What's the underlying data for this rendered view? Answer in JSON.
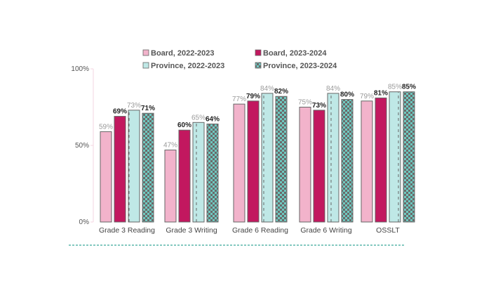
{
  "chart_data": {
    "type": "bar",
    "categories": [
      "Grade 3 Reading",
      "Grade 3 Writing",
      "Grade 6 Reading",
      "Grade 6 Writing",
      "OSSLT"
    ],
    "series": [
      {
        "name": "Board, 2022-2023",
        "values": [
          59,
          47,
          77,
          75,
          79
        ],
        "color": "#f2b3cb",
        "label_color": "#999999",
        "label_bold": false,
        "pattern": "solid"
      },
      {
        "name": "Board, 2023-2024",
        "values": [
          69,
          60,
          79,
          73,
          81
        ],
        "color": "#c2185f",
        "label_color": "#222222",
        "label_bold": true,
        "pattern": "solid"
      },
      {
        "name": "Province, 2022-2023",
        "values": [
          73,
          65,
          84,
          84,
          85
        ],
        "color": "#bfe8e6",
        "label_color": "#999999",
        "label_bold": false,
        "pattern": "dashed-vertical"
      },
      {
        "name": "Province, 2023-2024",
        "values": [
          71,
          64,
          82,
          80,
          85
        ],
        "color": "#6fc9c0",
        "label_color": "#222222",
        "label_bold": true,
        "pattern": "checkerboard"
      }
    ],
    "yticks": [
      "0%",
      "50%",
      "100%"
    ],
    "ylim": [
      0,
      100
    ],
    "legend": "top",
    "grid": false,
    "value_suffix": "%"
  }
}
